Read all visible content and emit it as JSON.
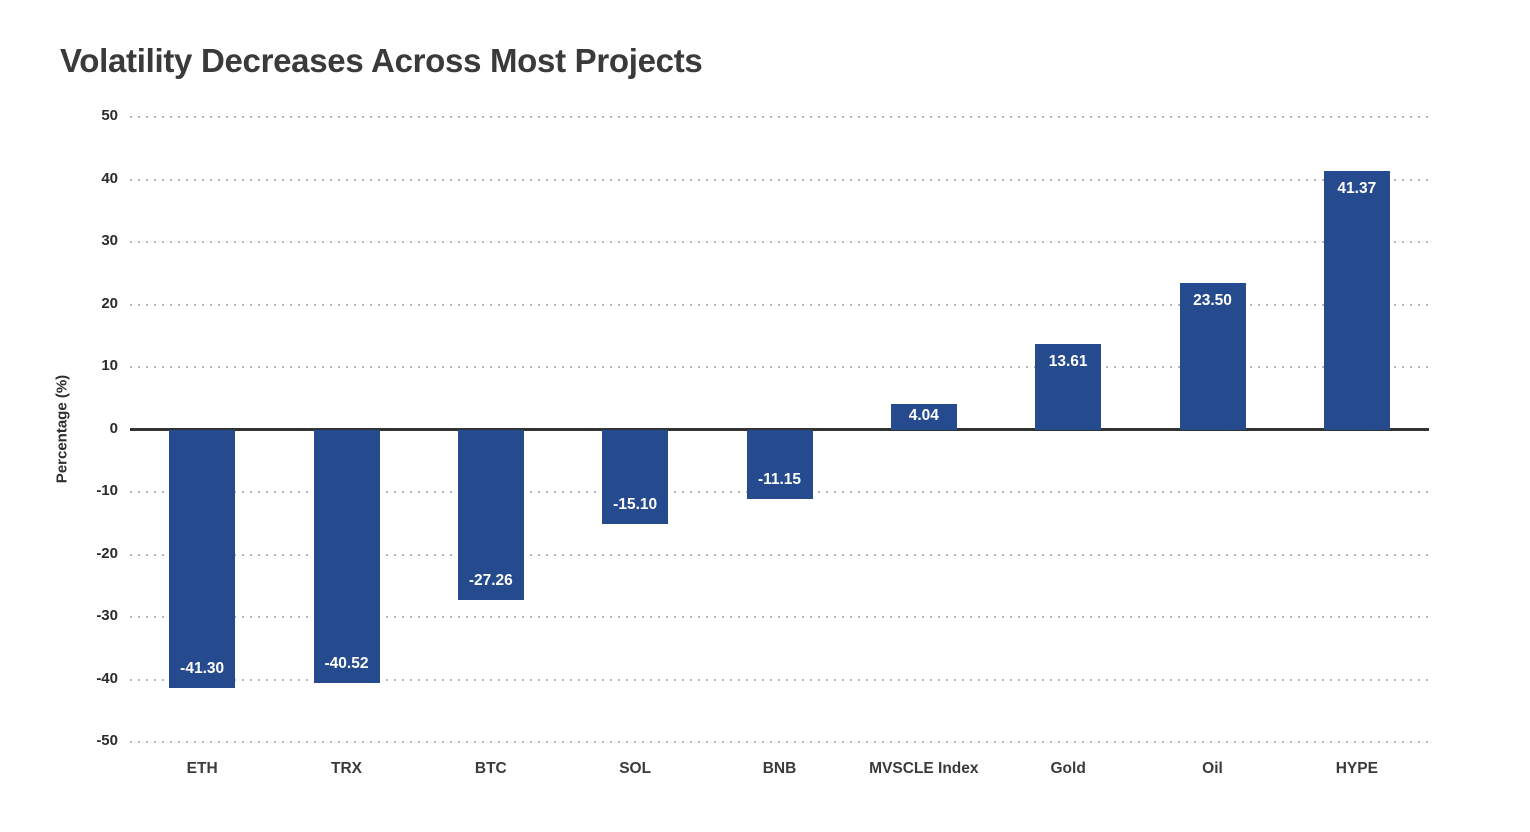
{
  "page": {
    "title": "Volatility Decreases Across Most Projects"
  },
  "chart_data": {
    "type": "bar",
    "title": "Volatility Decreases Across Most Projects",
    "categories": [
      "ETH",
      "TRX",
      "BTC",
      "SOL",
      "BNB",
      "MVSCLE Index",
      "Gold",
      "Oil",
      "HYPE"
    ],
    "values": [
      -41.3,
      -40.52,
      -27.26,
      -15.1,
      -11.15,
      4.04,
      13.61,
      23.5,
      41.37
    ],
    "value_labels": [
      "-41.30",
      "-40.52",
      "-27.26",
      "-15.10",
      "-11.15",
      "4.04",
      "13.61",
      "23.50",
      "41.37"
    ],
    "xlabel": "",
    "ylabel": "Percentage (%)",
    "ylim": [
      -50,
      50
    ],
    "yticks": [
      50,
      40,
      30,
      20,
      10,
      0,
      -10,
      -20,
      -30,
      -40,
      -50
    ],
    "grid": "horizontal-dotted",
    "legend_position": "none",
    "bar_color": "#254a8d",
    "value_label_color": "#ffffff",
    "zero_line_color": "#333333",
    "grid_color": "#b4b4b4",
    "title_color": "#3a3a3a",
    "tick_label_color": "#2b2b2b"
  }
}
